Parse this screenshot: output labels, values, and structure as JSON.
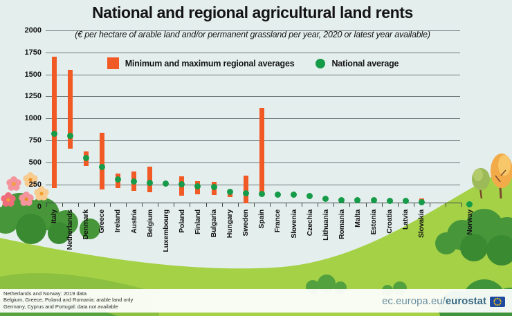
{
  "title": "National and regional agricultural land rents",
  "subtitle": "(€ per hectare of arable land and/or permanent grassland per year, 2020 or latest year available)",
  "legend": {
    "range_label": "Minimum and maximum regional averages",
    "average_label": "National average"
  },
  "colors": {
    "range_bar": "#f15a24",
    "national_average_dot": "#169b49",
    "gridline": "#4d5858",
    "background": "#e4eeed",
    "hill_green": "#a5d147"
  },
  "chart_data": {
    "type": "bar",
    "subtype": "min-max-range-bars-with-national-average-points",
    "title": "National and regional agricultural land rents",
    "unit": "EUR per hectare of arable land and/or permanent grassland per year",
    "year": "2020 or latest year available",
    "ylim": [
      0,
      2000
    ],
    "ytick_step": 250,
    "yticks": [
      0,
      250,
      500,
      750,
      1000,
      1250,
      1500,
      1750,
      2000
    ],
    "grid": "horizontal",
    "legend_position": "top",
    "series": [
      {
        "name": "Minimum and maximum regional averages",
        "marker": "orange-range-bar"
      },
      {
        "name": "National average",
        "marker": "green-dot"
      }
    ],
    "countries": [
      {
        "name": "Italy",
        "min": 205,
        "max": 1700,
        "avg": 825
      },
      {
        "name": "Netherlands",
        "min": 660,
        "max": 1550,
        "avg": 805
      },
      {
        "name": "Denmark",
        "min": 460,
        "max": 625,
        "avg": 550
      },
      {
        "name": "Greece",
        "min": 195,
        "max": 840,
        "avg": 450
      },
      {
        "name": "Ireland",
        "min": 210,
        "max": 375,
        "avg": 310
      },
      {
        "name": "Austria",
        "min": 175,
        "max": 400,
        "avg": 285
      },
      {
        "name": "Belgium",
        "min": 160,
        "max": 455,
        "avg": 265
      },
      {
        "name": "Luxembourg",
        "avg": 260
      },
      {
        "name": "Poland",
        "min": 125,
        "max": 345,
        "avg": 255
      },
      {
        "name": "Finland",
        "min": 140,
        "max": 290,
        "avg": 230
      },
      {
        "name": "Bulgaria",
        "min": 130,
        "max": 280,
        "avg": 220
      },
      {
        "name": "Hungary",
        "min": 105,
        "max": 190,
        "avg": 165
      },
      {
        "name": "Sweden",
        "min": 35,
        "max": 350,
        "avg": 150
      },
      {
        "name": "Spain",
        "min": 115,
        "max": 1120,
        "avg": 145
      },
      {
        "name": "France",
        "avg": 135
      },
      {
        "name": "Slovenia",
        "avg": 135
      },
      {
        "name": "Czechia",
        "avg": 115
      },
      {
        "name": "Lithuania",
        "avg": 90
      },
      {
        "name": "Romania",
        "min": 40,
        "max": 80,
        "avg": 70
      },
      {
        "name": "Malta",
        "avg": 70
      },
      {
        "name": "Estonia",
        "avg": 68
      },
      {
        "name": "Croatia",
        "avg": 66
      },
      {
        "name": "Latvia",
        "avg": 62
      },
      {
        "name": "Slovakia",
        "min": 45,
        "max": 90,
        "avg": 50
      },
      {
        "name": "Norway",
        "avg": 25,
        "gap_before": true
      }
    ]
  },
  "footnotes": [
    "Netherlands and Norway: 2019 data",
    "Belgium, Greece, Poland and Romania: arable land only",
    "Germany, Cyprus and Portugal: data not available"
  ],
  "footer": {
    "url_regular": "ec.europa.eu/",
    "url_bold": "eurostat"
  }
}
